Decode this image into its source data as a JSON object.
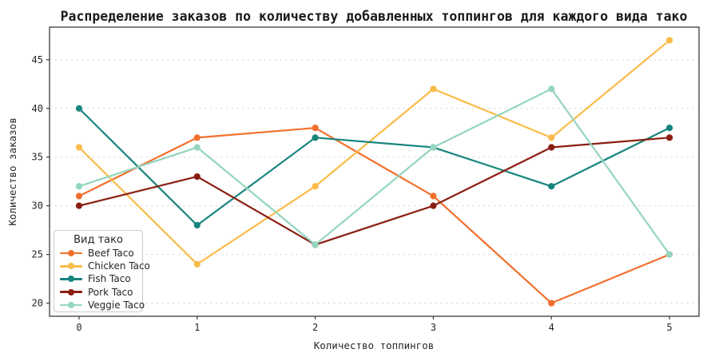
{
  "chart_data": {
    "type": "line",
    "title": "Распределение заказов по количеству добавленных топпингов для каждого вида тако",
    "xlabel": "Количество топпингов",
    "ylabel": "Количество заказов",
    "x": [
      0,
      1,
      2,
      3,
      4,
      5
    ],
    "xticks": [
      0,
      1,
      2,
      3,
      4,
      5
    ],
    "yticks": [
      20,
      25,
      30,
      35,
      40,
      45
    ],
    "xlim": [
      -0.25,
      5.25
    ],
    "ylim": [
      18.65,
      48.35
    ],
    "grid": "horizontal-dashed-only",
    "legend": {
      "title": "Вид тако",
      "position": "lower-left"
    },
    "series": [
      {
        "name": "Beef Taco",
        "color": "#F2702D",
        "values": [
          31,
          37,
          38,
          31,
          20,
          25
        ]
      },
      {
        "name": "Chicken Taco",
        "color": "#F9BB49",
        "values": [
          36,
          24,
          32,
          42,
          37,
          47
        ]
      },
      {
        "name": "Fish Taco",
        "color": "#17857D",
        "values": [
          40,
          28,
          37,
          36,
          32,
          38
        ]
      },
      {
        "name": "Pork Taco",
        "color": "#8A1E12",
        "values": [
          30,
          33,
          26,
          30,
          36,
          37
        ]
      },
      {
        "name": "Veggie Taco",
        "color": "#94D5C0",
        "values": [
          32,
          36,
          26,
          36,
          42,
          25
        ]
      }
    ],
    "style": {
      "background": "#ffffff",
      "grid_color": "#d9d9d9",
      "spine_color": "#3c3c3c",
      "text_color": "#262626"
    }
  }
}
